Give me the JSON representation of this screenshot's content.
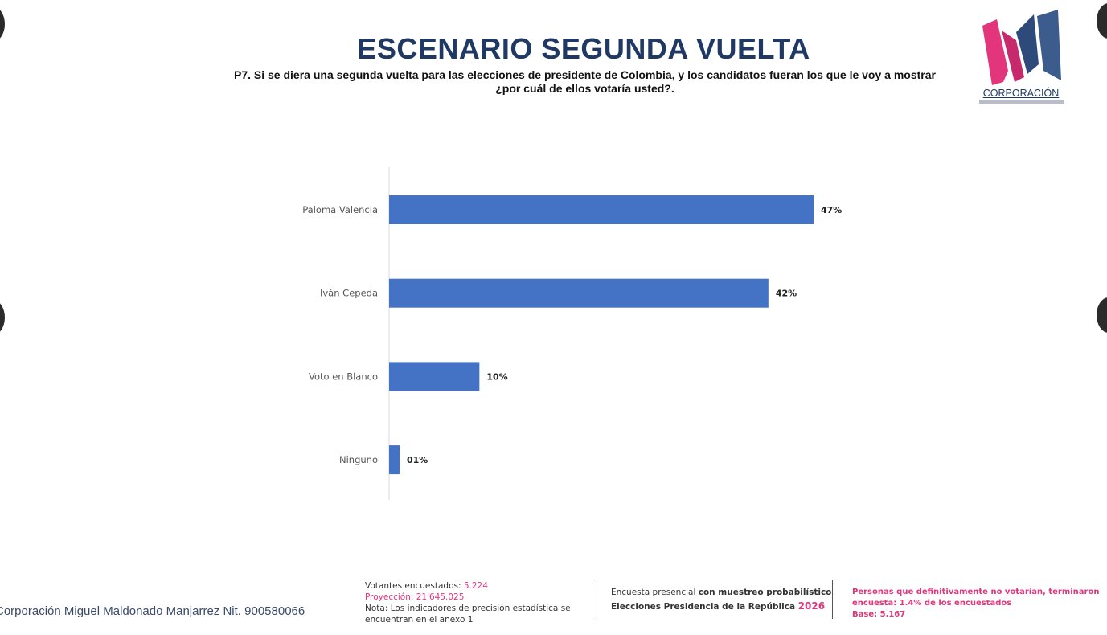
{
  "header": {
    "title": "ESCENARIO SEGUNDA VUELTA",
    "question_line1": "P7. Si se diera una segunda vuelta para las elecciones de presidente de Colombia, y los candidatos fueran los que le voy a mostrar",
    "question_line2": "¿por cuál de ellos votaría usted?."
  },
  "logo": {
    "word": "CORPORACIÓN",
    "subtext": "MIGUEL MALDONADO MANJARREZ",
    "colors": {
      "pink": "#e2357c",
      "navy": "#2e4a7a"
    }
  },
  "chart_data": {
    "type": "bar",
    "orientation": "horizontal",
    "categories": [
      "Paloma Valencia",
      "Iván Cepeda",
      "Voto en Blanco",
      "Ninguno"
    ],
    "values": [
      47,
      42,
      10,
      1
    ],
    "value_labels": [
      "47%",
      "42%",
      "10%",
      "01%"
    ],
    "xlim": [
      0,
      50
    ],
    "grid": false,
    "bar_color": "#4472c4"
  },
  "footer": {
    "company": "Corporación Miguel Maldonado Manjarrez Nit. 900580066",
    "votantes_label": "Votantes encuestados: ",
    "votantes_value": "5.224",
    "proyeccion": "Proyección: 21'645.025",
    "nota": "Nota: Los indicadores de precisión estadística se encuentran en el anexo 1",
    "encuesta_prefix": "Encuesta presencial ",
    "encuesta_bold": "con muestreo probabilístico",
    "elecciones": "Elecciones Presidencia de la República ",
    "year": "2026",
    "personas": "Personas que definitivamente no votarían, terminaron encuesta: 1.4% de los encuestados",
    "base": "Base: 5.167"
  }
}
